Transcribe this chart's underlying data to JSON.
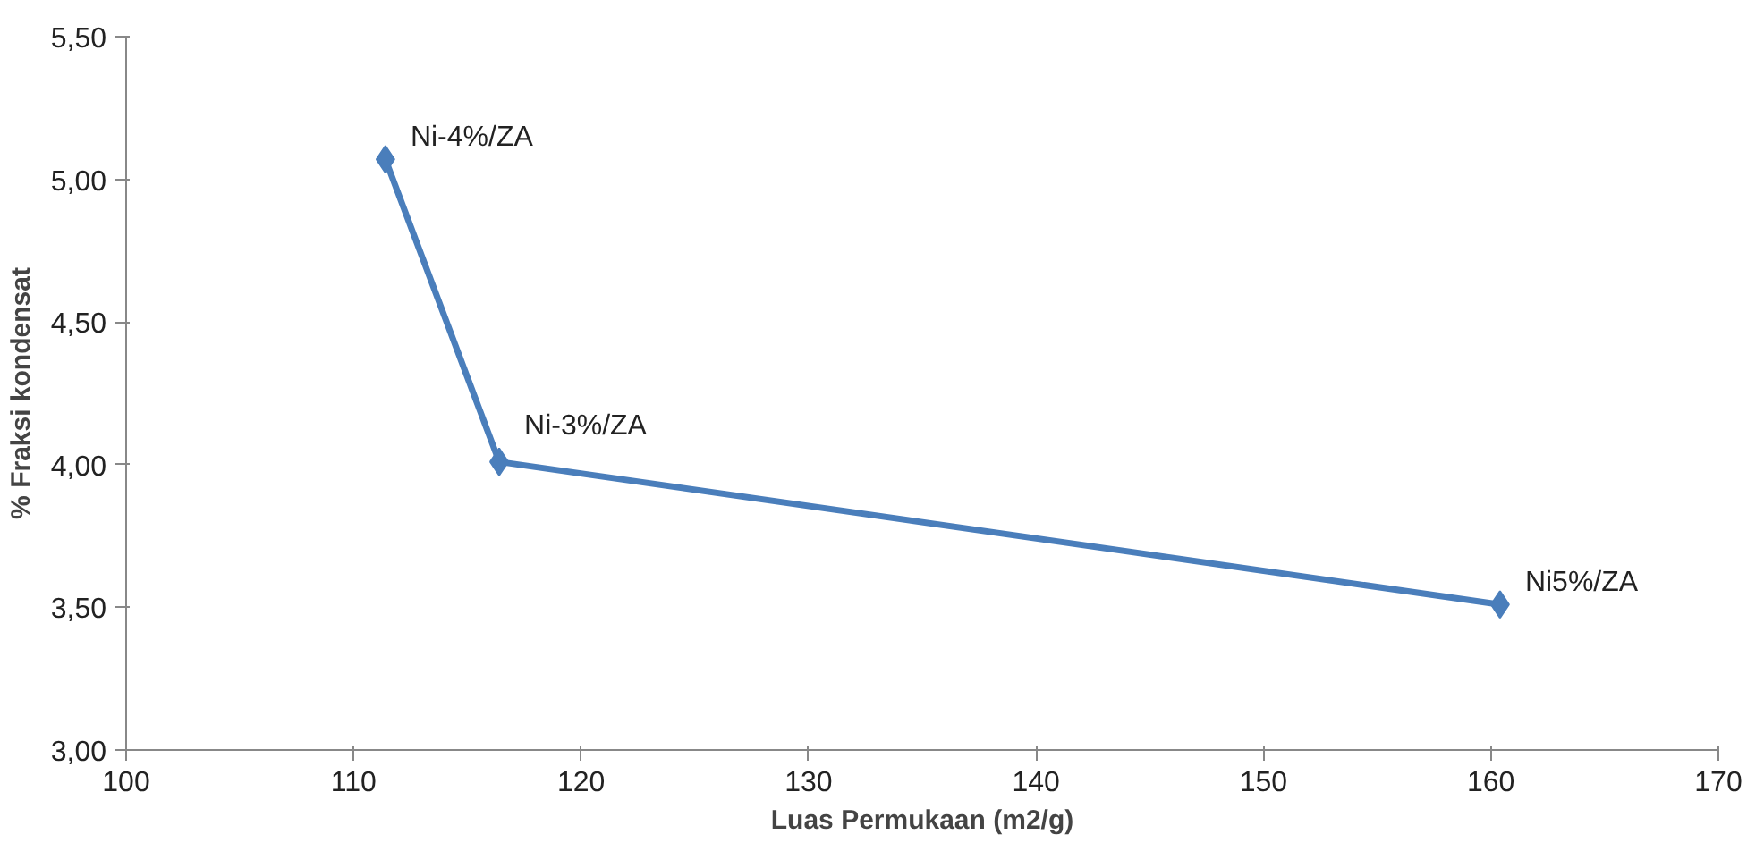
{
  "chart_data": {
    "type": "line",
    "xlabel": "Luas Permukaan (m2/g)",
    "ylabel": "% Fraksi kondensat",
    "x": [
      111.4,
      116.4,
      160.4
    ],
    "series": [
      {
        "color": "#4a7ebb",
        "values": [
          5.07,
          4.01,
          3.51
        ]
      }
    ],
    "xlim": [
      100,
      170
    ],
    "xticks": [
      100,
      110,
      120,
      130,
      140,
      150,
      160,
      170
    ],
    "ylim": [
      3.0,
      5.5
    ],
    "yticks": [
      {
        "value": 3.0,
        "label": "3,00"
      },
      {
        "value": 3.5,
        "label": "3,50"
      },
      {
        "value": 4.0,
        "label": "4,00"
      },
      {
        "value": 4.5,
        "label": "4,50"
      },
      {
        "value": 5.0,
        "label": "5,00"
      },
      {
        "value": 5.5,
        "label": "5,50"
      }
    ],
    "annotations": [
      {
        "text": "Ni-4%/ZA",
        "x": 111.4,
        "y": 5.07
      },
      {
        "text": "Ni-3%/ZA",
        "x": 116.4,
        "y": 4.01
      },
      {
        "text": "Ni5%/ZA",
        "x": 160.4,
        "y": 3.51
      }
    ],
    "marker": "diamond",
    "line_style": "solid"
  }
}
